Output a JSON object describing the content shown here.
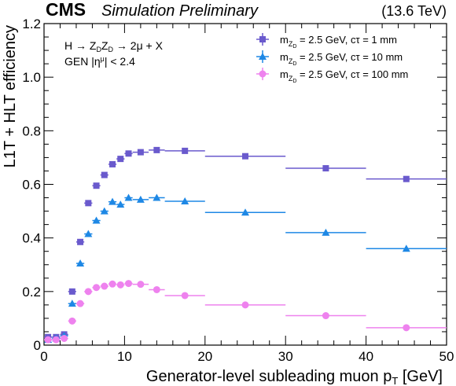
{
  "header": {
    "experiment": "CMS",
    "status": "Simulation Preliminary",
    "energy": "(13.6 TeV)"
  },
  "annotations": {
    "process": "H → Z",
    "process_sub1": "D",
    "process_mid": "Z",
    "process_sub2": "D",
    "process_end": " → 2μ + X",
    "cut_pre": "GEN |η",
    "cut_sup": "μ",
    "cut_post": "| < 2.4"
  },
  "chart_data": {
    "type": "scatter",
    "xlabel": "Generator-level subleading muon p",
    "xlabel_sub": "T",
    "xlabel_unit": " [GeV]",
    "ylabel": "L1T + HLT efficiency",
    "xlim": [
      0,
      50
    ],
    "ylim": [
      0,
      1.2
    ],
    "x_ticks": [
      "0",
      "10",
      "20",
      "30",
      "40",
      "50"
    ],
    "y_ticks": [
      "0",
      "0.2",
      "0.4",
      "0.6",
      "0.8",
      "1.0",
      "1.2"
    ],
    "legend_position": "top-right",
    "series": [
      {
        "legend_m": "m",
        "legend_sub": "Z",
        "legend_subsub": "D",
        "legend_rest": " = 2.5 GeV, cτ = 1 mm",
        "color": "#6a5acd",
        "marker": "square",
        "points": [
          {
            "x": 0.5,
            "xerr": 0.5,
            "y": 0.03
          },
          {
            "x": 1.5,
            "xerr": 0.5,
            "y": 0.03
          },
          {
            "x": 2.5,
            "xerr": 0.5,
            "y": 0.04
          },
          {
            "x": 3.5,
            "xerr": 0.5,
            "y": 0.2
          },
          {
            "x": 4.5,
            "xerr": 0.5,
            "y": 0.385
          },
          {
            "x": 5.5,
            "xerr": 0.5,
            "y": 0.53
          },
          {
            "x": 6.5,
            "xerr": 0.5,
            "y": 0.595
          },
          {
            "x": 7.5,
            "xerr": 0.5,
            "y": 0.635
          },
          {
            "x": 8.5,
            "xerr": 0.5,
            "y": 0.675
          },
          {
            "x": 9.5,
            "xerr": 0.5,
            "y": 0.695
          },
          {
            "x": 10.5,
            "xerr": 0.5,
            "y": 0.715
          },
          {
            "x": 12.0,
            "xerr": 1.0,
            "y": 0.72
          },
          {
            "x": 14.0,
            "xerr": 1.0,
            "y": 0.728
          },
          {
            "x": 17.5,
            "xerr": 2.5,
            "y": 0.725
          },
          {
            "x": 25.0,
            "xerr": 5.0,
            "y": 0.705
          },
          {
            "x": 35.0,
            "xerr": 5.0,
            "y": 0.66
          },
          {
            "x": 45.0,
            "xerr": 5.0,
            "y": 0.62
          }
        ]
      },
      {
        "legend_m": "m",
        "legend_sub": "Z",
        "legend_subsub": "D",
        "legend_rest": " = 2.5 GeV, cτ = 10 mm",
        "color": "#1e88e5",
        "marker": "triangle",
        "points": [
          {
            "x": 0.5,
            "xerr": 0.5,
            "y": 0.02
          },
          {
            "x": 1.5,
            "xerr": 0.5,
            "y": 0.025
          },
          {
            "x": 2.5,
            "xerr": 0.5,
            "y": 0.035
          },
          {
            "x": 3.5,
            "xerr": 0.5,
            "y": 0.155
          },
          {
            "x": 4.5,
            "xerr": 0.5,
            "y": 0.305
          },
          {
            "x": 5.5,
            "xerr": 0.5,
            "y": 0.415
          },
          {
            "x": 6.5,
            "xerr": 0.5,
            "y": 0.465
          },
          {
            "x": 7.5,
            "xerr": 0.5,
            "y": 0.5
          },
          {
            "x": 8.5,
            "xerr": 0.5,
            "y": 0.535
          },
          {
            "x": 9.5,
            "xerr": 0.5,
            "y": 0.525
          },
          {
            "x": 10.5,
            "xerr": 0.5,
            "y": 0.55
          },
          {
            "x": 12.0,
            "xerr": 1.0,
            "y": 0.543
          },
          {
            "x": 14.0,
            "xerr": 1.0,
            "y": 0.55
          },
          {
            "x": 17.5,
            "xerr": 2.5,
            "y": 0.537
          },
          {
            "x": 25.0,
            "xerr": 5.0,
            "y": 0.495
          },
          {
            "x": 35.0,
            "xerr": 5.0,
            "y": 0.42
          },
          {
            "x": 45.0,
            "xerr": 5.0,
            "y": 0.36
          }
        ]
      },
      {
        "legend_m": "m",
        "legend_sub": "Z",
        "legend_subsub": "D",
        "legend_rest": " = 2.5 GeV, cτ = 100 mm",
        "color": "#ee82ee",
        "marker": "circle",
        "points": [
          {
            "x": 0.5,
            "xerr": 0.5,
            "y": 0.02
          },
          {
            "x": 1.5,
            "xerr": 0.5,
            "y": 0.02
          },
          {
            "x": 2.5,
            "xerr": 0.5,
            "y": 0.025
          },
          {
            "x": 3.5,
            "xerr": 0.5,
            "y": 0.09
          },
          {
            "x": 4.5,
            "xerr": 0.5,
            "y": 0.155
          },
          {
            "x": 5.5,
            "xerr": 0.5,
            "y": 0.2
          },
          {
            "x": 6.5,
            "xerr": 0.5,
            "y": 0.215
          },
          {
            "x": 7.5,
            "xerr": 0.5,
            "y": 0.22
          },
          {
            "x": 8.5,
            "xerr": 0.5,
            "y": 0.228
          },
          {
            "x": 9.5,
            "xerr": 0.5,
            "y": 0.225
          },
          {
            "x": 10.5,
            "xerr": 0.5,
            "y": 0.23
          },
          {
            "x": 12.0,
            "xerr": 1.0,
            "y": 0.227
          },
          {
            "x": 14.0,
            "xerr": 1.0,
            "y": 0.207
          },
          {
            "x": 17.5,
            "xerr": 2.5,
            "y": 0.185
          },
          {
            "x": 25.0,
            "xerr": 5.0,
            "y": 0.15
          },
          {
            "x": 35.0,
            "xerr": 5.0,
            "y": 0.11
          },
          {
            "x": 45.0,
            "xerr": 5.0,
            "y": 0.065
          }
        ]
      }
    ]
  }
}
